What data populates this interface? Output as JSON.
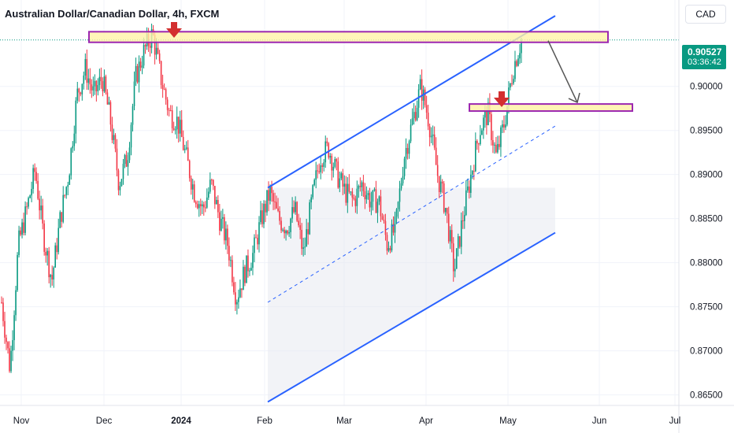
{
  "header": {
    "title": "Australian Dollar/Canadian Dollar, 4h, FXCM",
    "currency_button": "CAD"
  },
  "last_price": {
    "value": "0.90527",
    "countdown": "03:36:42"
  },
  "colors": {
    "up": "#089981",
    "down": "#f23645",
    "channel": "#2962ff",
    "zone_fill": "#fff2a8",
    "zone_border": "#9c27b0",
    "arrow": "#d32f2f"
  },
  "chart_data": {
    "type": "candlestick",
    "title": "Australian Dollar/Canadian Dollar, 4h, FXCM",
    "y_axis": {
      "ticks": [
        "0.90000",
        "0.89500",
        "0.89000",
        "0.88500",
        "0.88000",
        "0.87500",
        "0.87000",
        "0.86500"
      ],
      "range": [
        0.8638,
        0.9098
      ],
      "position": "right"
    },
    "x_axis": {
      "ticks": [
        "Nov",
        "Dec",
        "2024",
        "Feb",
        "Mar",
        "Apr",
        "May",
        "Jun",
        "Jul"
      ]
    },
    "price_path": [
      [
        "Nov",
        0.8755
      ],
      [
        "Nov",
        0.868
      ],
      [
        "Nov",
        0.882
      ],
      [
        "Nov",
        0.886
      ],
      [
        "Nov",
        0.8905
      ],
      [
        "Nov",
        0.883
      ],
      [
        "Nov",
        0.878
      ],
      [
        "Nov",
        0.885
      ],
      [
        "Nov",
        0.89
      ],
      [
        "Nov",
        0.899
      ],
      [
        "Nov",
        0.902
      ],
      [
        "Dec",
        0.899
      ],
      [
        "Dec",
        0.901
      ],
      [
        "Dec",
        0.896
      ],
      [
        "Dec",
        0.889
      ],
      [
        "Dec",
        0.892
      ],
      [
        "Dec",
        0.901
      ],
      [
        "Dec",
        0.904
      ],
      [
        "2024",
        0.906
      ],
      [
        "2024",
        0.901
      ],
      [
        "2024",
        0.897
      ],
      [
        "2024",
        0.896
      ],
      [
        "2024",
        0.892
      ],
      [
        "2024",
        0.888
      ],
      [
        "2024",
        0.886
      ],
      [
        "2024",
        0.889
      ],
      [
        "2024",
        0.885
      ],
      [
        "Feb",
        0.882
      ],
      [
        "Feb",
        0.876
      ],
      [
        "Feb",
        0.879
      ],
      [
        "Feb",
        0.881
      ],
      [
        "Feb",
        0.885
      ],
      [
        "Feb",
        0.888
      ],
      [
        "Feb",
        0.885
      ],
      [
        "Feb",
        0.884
      ],
      [
        "Feb",
        0.886
      ],
      [
        "Mar",
        0.881
      ],
      [
        "Mar",
        0.887
      ],
      [
        "Mar",
        0.892
      ],
      [
        "Mar",
        0.893
      ],
      [
        "Mar",
        0.89
      ],
      [
        "Mar",
        0.888
      ],
      [
        "Mar",
        0.887
      ],
      [
        "Mar",
        0.889
      ],
      [
        "Mar",
        0.887
      ],
      [
        "Apr",
        0.887
      ],
      [
        "Apr",
        0.882
      ],
      [
        "Apr",
        0.884
      ],
      [
        "Apr",
        0.892
      ],
      [
        "Apr",
        0.896
      ],
      [
        "Apr",
        0.9
      ],
      [
        "Apr",
        0.896
      ],
      [
        "Apr",
        0.89
      ],
      [
        "Apr",
        0.886
      ],
      [
        "Apr",
        0.879
      ],
      [
        "Apr",
        0.885
      ],
      [
        "Apr",
        0.89
      ],
      [
        "Apr",
        0.895
      ],
      [
        "May",
        0.897
      ],
      [
        "May",
        0.892
      ],
      [
        "May",
        0.896
      ],
      [
        "May",
        0.902
      ],
      [
        "May",
        0.90527
      ]
    ],
    "annotations": {
      "resistance_zone": [
        0.905,
        0.9062
      ],
      "support_zone": [
        0.8972,
        0.898
      ],
      "channel": {
        "upper": [
          [
            "Feb",
            0.8885
          ],
          [
            "May",
            0.908
          ]
        ],
        "lower": [
          [
            "Feb",
            0.8642
          ],
          [
            "May",
            0.8834
          ]
        ],
        "median": [
          [
            "Feb",
            0.8755
          ],
          [
            "May",
            0.8955
          ]
        ]
      },
      "down_markers": [
        "2024",
        "May"
      ],
      "projection": "resistance to support"
    },
    "grid": true,
    "legend": "none"
  }
}
